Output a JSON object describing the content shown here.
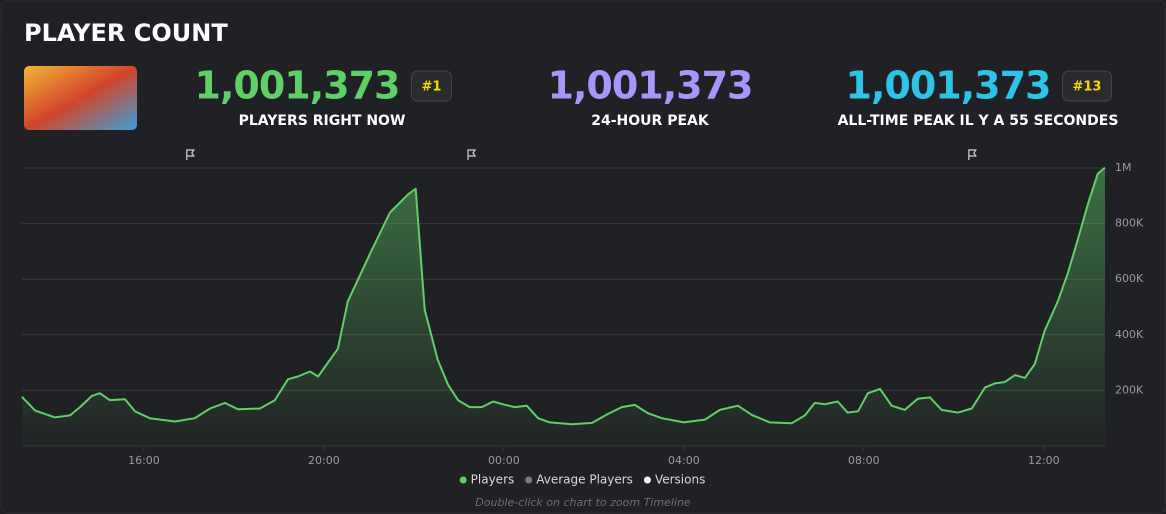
{
  "header": {
    "title": "PLAYER COUNT"
  },
  "stats": [
    {
      "value": "1,001,373",
      "label": "PLAYERS RIGHT NOW",
      "badge": "#1",
      "color": "#5fd068"
    },
    {
      "value": "1,001,373",
      "label": "24-HOUR PEAK",
      "color": "#a996fb"
    },
    {
      "value": "1,001,373",
      "label": "ALL-TIME PEAK IL Y A 55 SECONDES",
      "badge": "#13",
      "color": "#2ec4e8"
    }
  ],
  "chart_data": {
    "type": "line",
    "x": [
      13.29,
      13.58,
      14.02,
      14.36,
      14.58,
      14.84,
      15.02,
      15.24,
      15.58,
      15.8,
      16.13,
      16.69,
      17.13,
      17.47,
      17.8,
      18.09,
      18.58,
      18.91,
      19.2,
      19.42,
      19.69,
      19.87,
      20.09,
      20.31,
      20.53,
      21.02,
      21.47,
      21.87,
      22.04,
      22.24,
      22.53,
      22.76,
      22.98,
      23.24,
      23.51,
      23.76,
      23.98,
      24.24,
      24.51,
      24.76,
      25.02,
      25.51,
      25.96,
      26.31,
      26.62,
      26.91,
      27.2,
      27.51,
      28.0,
      28.47,
      28.8,
      29.2,
      29.51,
      29.91,
      30.4,
      30.69,
      30.91,
      31.13,
      31.42,
      31.64,
      31.87,
      32.09,
      32.36,
      32.62,
      32.91,
      33.2,
      33.47,
      33.73,
      34.09,
      34.4,
      34.69,
      34.91,
      35.13,
      35.36,
      35.58,
      35.8,
      36.02,
      36.31,
      36.53,
      36.76,
      36.98,
      37.2,
      37.36
    ],
    "series": [
      {
        "name": "Players",
        "color": "#5fd068",
        "values": [
          177000,
          128000,
          103000,
          110000,
          140000,
          180000,
          190000,
          165000,
          168000,
          125000,
          100000,
          88000,
          100000,
          135000,
          155000,
          132000,
          135000,
          165000,
          240000,
          250000,
          268000,
          250000,
          300000,
          350000,
          520000,
          690000,
          840000,
          905000,
          925000,
          490000,
          310000,
          220000,
          165000,
          140000,
          140000,
          160000,
          150000,
          140000,
          145000,
          100000,
          85000,
          78000,
          83000,
          115000,
          140000,
          148000,
          118000,
          100000,
          85000,
          95000,
          130000,
          145000,
          112000,
          85000,
          82000,
          110000,
          155000,
          150000,
          160000,
          120000,
          125000,
          190000,
          205000,
          145000,
          130000,
          170000,
          175000,
          130000,
          120000,
          135000,
          210000,
          225000,
          230000,
          255000,
          245000,
          295000,
          415000,
          520000,
          620000,
          745000,
          870000,
          980000,
          1001373
        ]
      }
    ],
    "legend_items": [
      {
        "name": "Average Players",
        "color": "#7a7b80"
      },
      {
        "name": "Versions",
        "color": "#ffffff"
      }
    ],
    "version_markers": [
      17.02,
      23.27,
      34.4
    ],
    "xlim": [
      13.29,
      37.36
    ],
    "xticks": [
      {
        "value": 16,
        "label": "16:00"
      },
      {
        "value": 20,
        "label": "20:00"
      },
      {
        "value": 24,
        "label": "00:00"
      },
      {
        "value": 28,
        "label": "04:00"
      },
      {
        "value": 32,
        "label": "08:00"
      },
      {
        "value": 36,
        "label": "12:00"
      }
    ],
    "ylim": [
      0,
      1000000
    ],
    "yticks": [
      {
        "value": 200000,
        "label": "200K"
      },
      {
        "value": 400000,
        "label": "400K"
      },
      {
        "value": 600000,
        "label": "600K"
      },
      {
        "value": 800000,
        "label": "800K"
      },
      {
        "value": 1000000,
        "label": "1M"
      }
    ],
    "grid": true,
    "note": "Double-click on chart to zoom Timeline"
  }
}
